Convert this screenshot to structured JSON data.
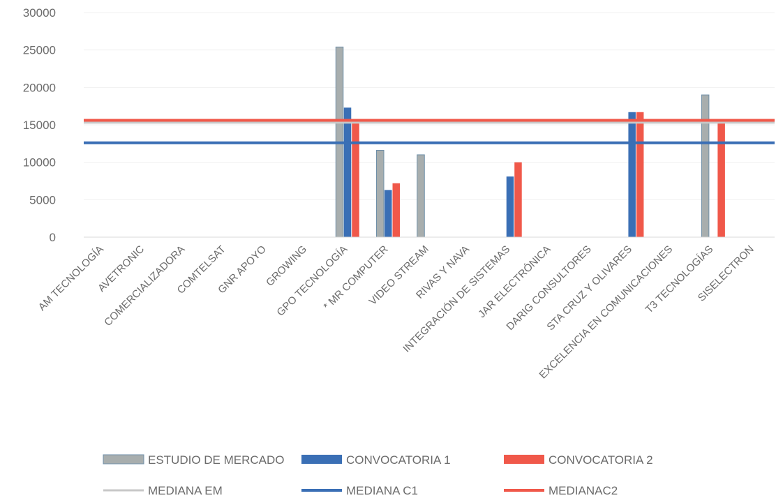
{
  "chart_data": {
    "type": "bar",
    "title": "",
    "xlabel": "",
    "ylabel": "",
    "ylim": [
      0,
      30000
    ],
    "yticks": [
      "0",
      "5000",
      "10000",
      "15000",
      "20000",
      "25000",
      "30000"
    ],
    "grid": true,
    "legend_position": "bottom",
    "categories": [
      "AM TECNOLOGÍA",
      "AVETRONIC",
      "COMERCIALIZADORA",
      "COMTELSAT",
      "GNR APOYO",
      "GROWING",
      "GPO TECNOLOGÍA",
      "* MR COMPUTER",
      "VIDEO STREAM",
      "RIVAS Y NAVA",
      "INTEGRACIÓN DE SISTEMAS",
      "JAR ELECTRÓNICA",
      "DARIG CONSULTORES",
      "STA CRUZ Y OLIVARES",
      "EXCELENCIA EN COMUNICACIONES",
      "T3 TECNOLOGÍAS",
      "SISELECTRON"
    ],
    "series": [
      {
        "name": "ESTUDIO DE MERCADO",
        "kind": "bar",
        "color": "#a8aeae",
        "values": [
          null,
          null,
          null,
          null,
          null,
          null,
          25400,
          11600,
          11000,
          null,
          null,
          null,
          null,
          null,
          null,
          19000,
          null
        ]
      },
      {
        "name": "CONVOCATORIA 1",
        "kind": "bar",
        "color": "#3a6fb5",
        "values": [
          null,
          null,
          null,
          null,
          null,
          null,
          17300,
          6300,
          null,
          null,
          8100,
          null,
          null,
          16700,
          null,
          null,
          null
        ]
      },
      {
        "name": "CONVOCATORIA 2",
        "kind": "bar",
        "color": "#f0584a",
        "values": [
          null,
          null,
          null,
          null,
          null,
          null,
          15200,
          7200,
          null,
          null,
          10000,
          null,
          null,
          16700,
          null,
          15600,
          null
        ]
      },
      {
        "name": "MEDIANA EM",
        "kind": "line",
        "color": "#c8c8c8",
        "values": [
          15300,
          15300,
          15300,
          15300,
          15300,
          15300,
          15300,
          15300,
          15300,
          15300,
          15300,
          15300,
          15300,
          15300,
          15300,
          15300,
          15300
        ]
      },
      {
        "name": "MEDIANA C1",
        "kind": "line",
        "color": "#3a6fb5",
        "values": [
          12600,
          12600,
          12600,
          12600,
          12600,
          12600,
          12600,
          12600,
          12600,
          12600,
          12600,
          12600,
          12600,
          12600,
          12600,
          12600,
          12600
        ]
      },
      {
        "name": "MEDIANAC2",
        "kind": "line",
        "color": "#f0584a",
        "values": [
          15600,
          15600,
          15600,
          15600,
          15600,
          15600,
          15600,
          15600,
          15600,
          15600,
          15600,
          15600,
          15600,
          15600,
          15600,
          15600,
          15600
        ]
      }
    ]
  }
}
